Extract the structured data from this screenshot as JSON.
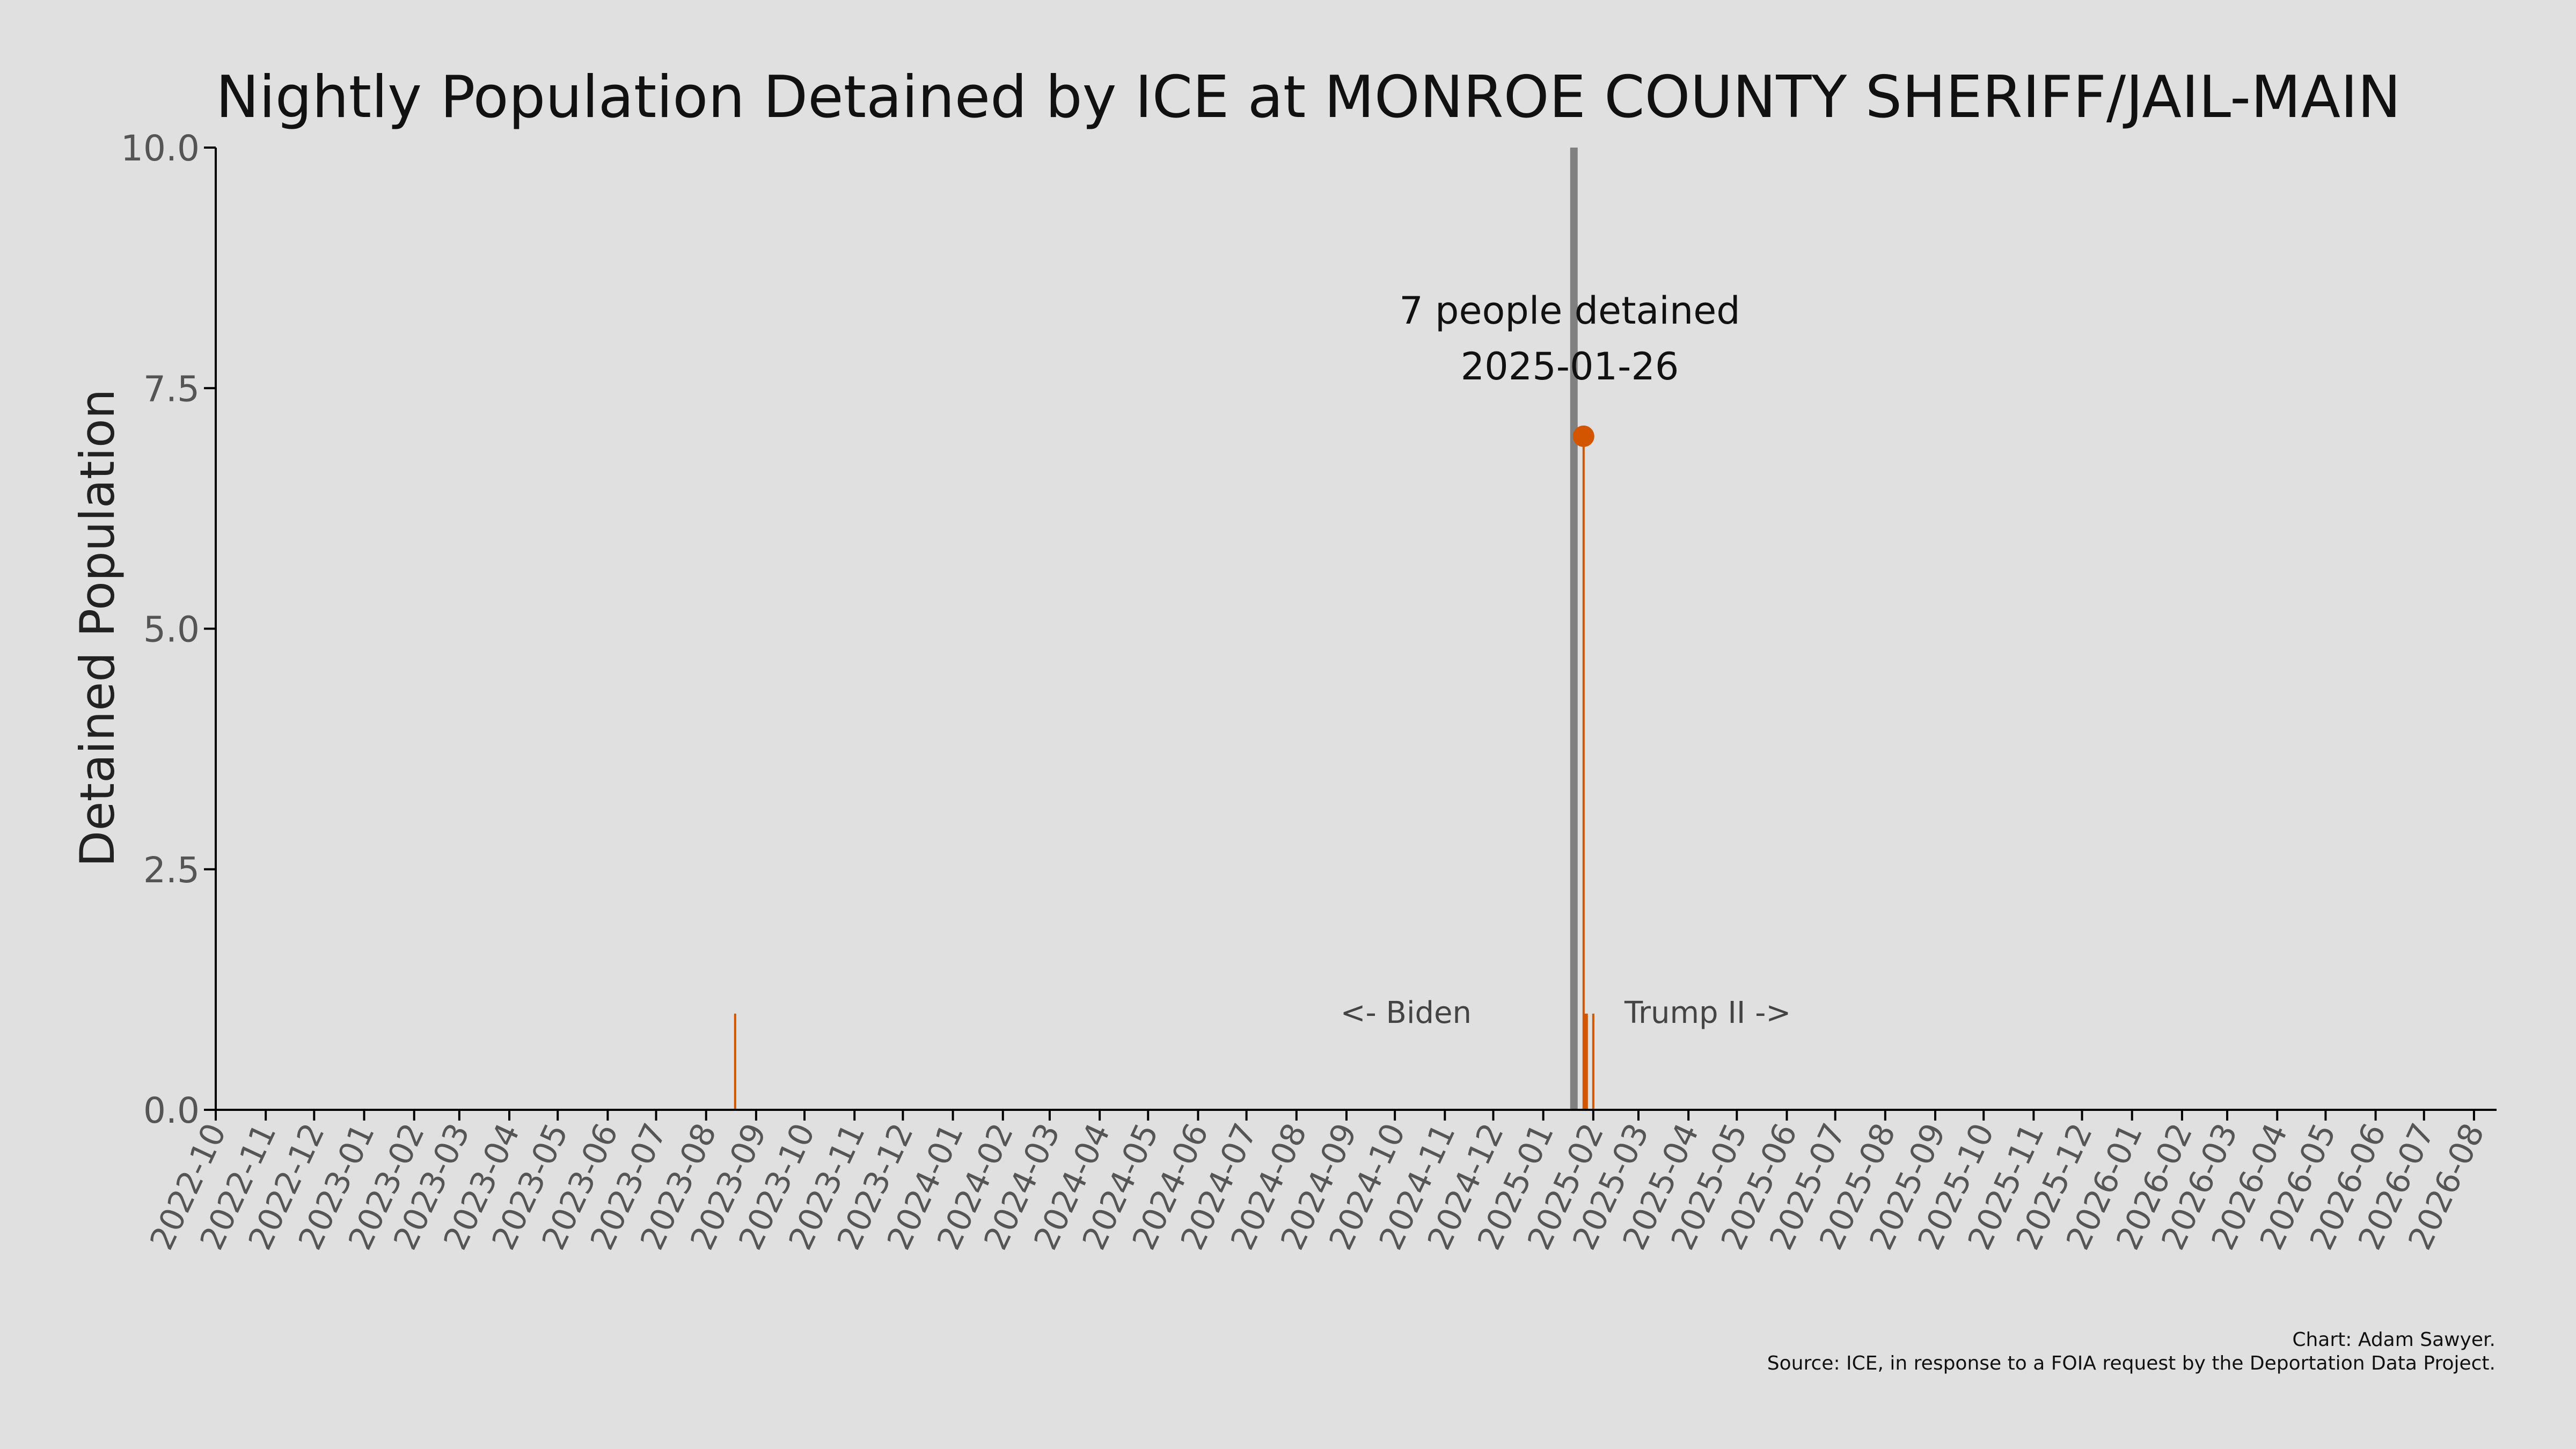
{
  "chart_data": {
    "type": "line",
    "title": "Nightly Population Detained by ICE at MONROE COUNTY SHERIFF/JAIL-MAIN",
    "xlabel": "",
    "ylabel": "Detained Population",
    "ylim": [
      0,
      10
    ],
    "y_ticks": [
      0,
      2.5,
      5,
      7.5,
      10
    ],
    "y_tick_labels": [
      "0.0",
      "2.5",
      "5.0",
      "7.5",
      "10.0"
    ],
    "xlim": [
      "2022-10-01",
      "2026-08-15"
    ],
    "x_tick_labels": [
      "2022-10",
      "2022-11",
      "2022-12",
      "2023-01",
      "2023-02",
      "2023-03",
      "2023-04",
      "2023-05",
      "2023-06",
      "2023-07",
      "2023-08",
      "2023-09",
      "2023-10",
      "2023-11",
      "2023-12",
      "2024-01",
      "2024-02",
      "2024-03",
      "2024-04",
      "2024-05",
      "2024-06",
      "2024-07",
      "2024-08",
      "2024-09",
      "2024-10",
      "2024-11",
      "2024-12",
      "2025-01",
      "2025-02",
      "2025-03",
      "2025-04",
      "2025-05",
      "2025-06",
      "2025-07",
      "2025-08",
      "2025-09",
      "2025-10",
      "2025-11",
      "2025-12",
      "2026-01",
      "2026-02",
      "2026-03",
      "2026-04",
      "2026-05",
      "2026-06",
      "2026-07",
      "2026-08"
    ],
    "grid": false,
    "series": [
      {
        "color": "#d45500",
        "points": [
          {
            "date": "2023-08-19",
            "value": 1
          },
          {
            "date": "2025-01-26",
            "value": 7
          },
          {
            "date": "2025-01-27",
            "value": 1
          },
          {
            "date": "2025-01-28",
            "value": 1
          },
          {
            "date": "2025-02-01",
            "value": 1
          }
        ]
      }
    ],
    "highlight_point": {
      "date": "2025-01-26",
      "value": 7
    },
    "annotation": {
      "line1": "7 people detained",
      "line2": "2025-01-26"
    },
    "reference_line": {
      "date": "2025-01-20",
      "color": "#808080"
    },
    "period_labels": {
      "left": "<- Biden",
      "right": "Trump II ->"
    },
    "credit": {
      "line1": "Chart: Adam Sawyer.",
      "line2": "Source: ICE, in response to a FOIA request by the Deportation Data Project."
    },
    "colors": {
      "background": "#e0e0e0",
      "series": "#d45500",
      "reference": "#808080",
      "axis": "#000000",
      "tick_text": "#555555"
    }
  }
}
